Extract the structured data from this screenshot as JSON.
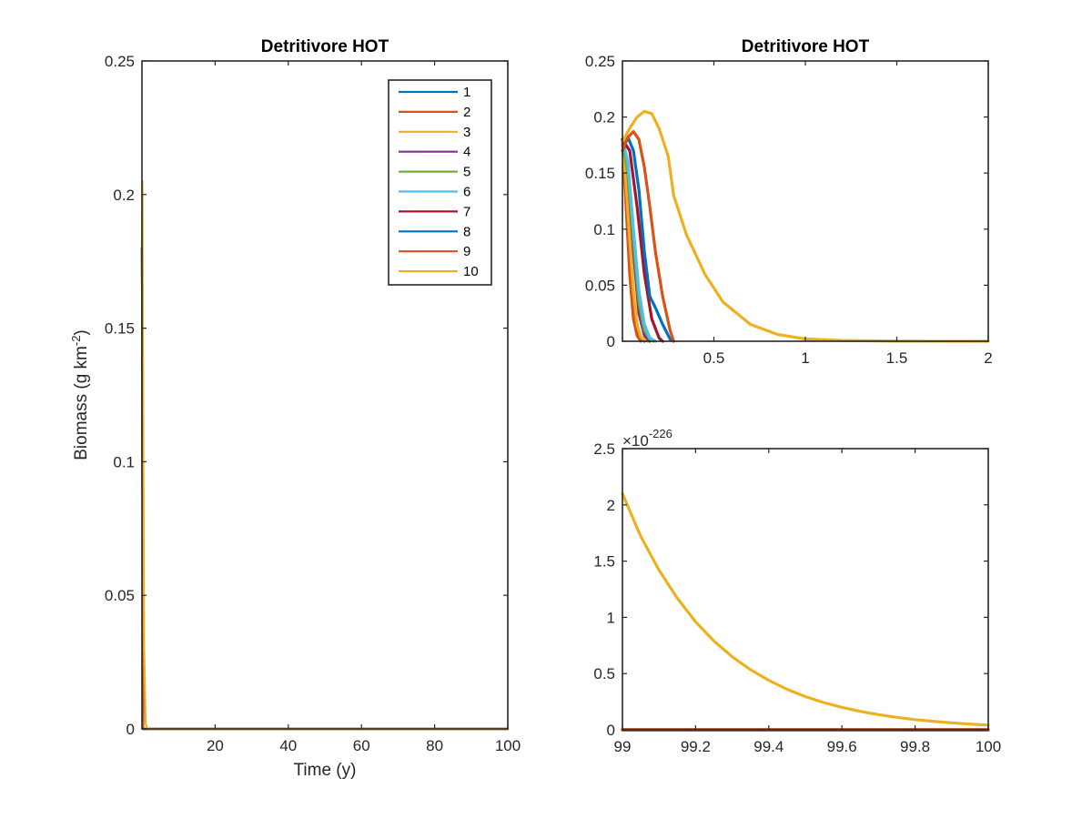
{
  "colors": {
    "series": [
      "#0072BD",
      "#D95319",
      "#EDB120",
      "#7E2F8E",
      "#77AC30",
      "#4DBEEE",
      "#A2142F",
      "#0072BD",
      "#D95319",
      "#EDB120"
    ]
  },
  "chart_data": [
    {
      "type": "line",
      "title": "Detritivore HOT",
      "xlabel": "Time (y)",
      "ylabel": "Biomass (g km",
      "ylabel_sup": "-2",
      "ylabel_close": ")",
      "xlim": [
        0,
        100
      ],
      "ylim": [
        0,
        0.25
      ],
      "xticks": [
        20,
        40,
        60,
        80,
        100
      ],
      "yticks": [
        0,
        0.05,
        0.1,
        0.15,
        0.2,
        0.25
      ],
      "legend": {
        "placement": "top-right",
        "entries": [
          "1",
          "2",
          "3",
          "4",
          "5",
          "6",
          "7",
          "8",
          "9",
          "10"
        ]
      },
      "series": [
        {
          "name": "1",
          "x": [
            0,
            0.12,
            0.3,
            100
          ],
          "y": [
            0.18,
            0.1,
            0,
            0
          ]
        },
        {
          "name": "2",
          "x": [
            0,
            0.12,
            0.3,
            100
          ],
          "y": [
            0.18,
            0.1,
            0,
            0
          ]
        },
        {
          "name": "3",
          "x": [
            0,
            0.12,
            0.3,
            100
          ],
          "y": [
            0.18,
            0.1,
            0,
            0
          ]
        },
        {
          "name": "4",
          "x": [
            0,
            0.12,
            0.3,
            100
          ],
          "y": [
            0.18,
            0.1,
            0,
            0
          ]
        },
        {
          "name": "5",
          "x": [
            0,
            0.12,
            0.3,
            100
          ],
          "y": [
            0.18,
            0.1,
            0,
            0
          ]
        },
        {
          "name": "6",
          "x": [
            0,
            0.12,
            0.3,
            100
          ],
          "y": [
            0.18,
            0.1,
            0,
            0
          ]
        },
        {
          "name": "7",
          "x": [
            0,
            0.12,
            0.3,
            100
          ],
          "y": [
            0.18,
            0.1,
            0,
            0
          ]
        },
        {
          "name": "8",
          "x": [
            0,
            0.12,
            0.3,
            100
          ],
          "y": [
            0.18,
            0.1,
            0,
            0
          ]
        },
        {
          "name": "9",
          "x": [
            0,
            0.05,
            0.12,
            0.3,
            100
          ],
          "y": [
            0.18,
            0.187,
            0.15,
            0,
            0
          ]
        },
        {
          "name": "10",
          "x": [
            0,
            0.12,
            0.3,
            0.6,
            1.0,
            1.5,
            100
          ],
          "y": [
            0.18,
            0.205,
            0.13,
            0.03,
            0.002,
            0,
            0
          ]
        }
      ]
    },
    {
      "type": "line",
      "title": "Detritivore HOT",
      "xlim": [
        0,
        2
      ],
      "ylim": [
        0,
        0.25
      ],
      "xticks": [
        0.5,
        1,
        1.5,
        2
      ],
      "yticks": [
        0,
        0.05,
        0.1,
        0.15,
        0.2,
        0.25
      ],
      "series": [
        {
          "name": "1",
          "x": [
            0,
            0.02,
            0.04,
            0.06,
            0.08,
            0.1,
            0.12
          ],
          "y": [
            0.18,
            0.13,
            0.07,
            0.03,
            0.01,
            0.002,
            0
          ]
        },
        {
          "name": "2",
          "x": [
            0,
            0.02,
            0.04,
            0.06,
            0.08,
            0.1
          ],
          "y": [
            0.18,
            0.12,
            0.06,
            0.02,
            0.005,
            0
          ]
        },
        {
          "name": "3",
          "x": [
            0,
            0.02,
            0.04,
            0.06,
            0.08,
            0.1,
            0.12,
            0.14
          ],
          "y": [
            0.18,
            0.14,
            0.09,
            0.045,
            0.015,
            0.004,
            0.001,
            0
          ]
        },
        {
          "name": "4",
          "x": [
            0,
            0.03,
            0.06,
            0.09,
            0.12,
            0.15
          ],
          "y": [
            0.18,
            0.15,
            0.08,
            0.025,
            0.005,
            0
          ]
        },
        {
          "name": "5",
          "x": [
            0,
            0.03,
            0.06,
            0.09,
            0.12,
            0.15,
            0.17
          ],
          "y": [
            0.18,
            0.15,
            0.09,
            0.035,
            0.01,
            0.002,
            0
          ]
        },
        {
          "name": "6",
          "x": [
            0,
            0.03,
            0.06,
            0.09,
            0.12,
            0.15,
            0.18
          ],
          "y": [
            0.18,
            0.16,
            0.1,
            0.045,
            0.015,
            0.003,
            0
          ]
        },
        {
          "name": "7",
          "x": [
            0,
            0.04,
            0.08,
            0.12,
            0.16,
            0.2,
            0.22
          ],
          "y": [
            0.18,
            0.17,
            0.12,
            0.06,
            0.02,
            0.003,
            0
          ]
        },
        {
          "name": "8",
          "x": [
            0,
            0.03,
            0.06,
            0.09,
            0.12,
            0.15,
            0.18,
            0.22,
            0.26,
            0.28
          ],
          "y": [
            0.17,
            0.182,
            0.17,
            0.135,
            0.08,
            0.04,
            0.03,
            0.015,
            0.002,
            0
          ]
        },
        {
          "name": "9",
          "x": [
            0,
            0.03,
            0.06,
            0.09,
            0.12,
            0.15,
            0.18,
            0.22,
            0.26,
            0.28
          ],
          "y": [
            0.17,
            0.182,
            0.187,
            0.18,
            0.155,
            0.12,
            0.08,
            0.04,
            0.01,
            0
          ]
        },
        {
          "name": "10",
          "x": [
            0,
            0.04,
            0.08,
            0.12,
            0.16,
            0.2,
            0.25,
            0.28,
            0.35,
            0.45,
            0.55,
            0.7,
            0.85,
            1.0,
            1.2,
            1.5,
            2.0
          ],
          "y": [
            0.178,
            0.19,
            0.2,
            0.205,
            0.203,
            0.19,
            0.165,
            0.13,
            0.095,
            0.06,
            0.035,
            0.015,
            0.006,
            0.002,
            0.0007,
            0.0001,
            0
          ]
        }
      ]
    },
    {
      "type": "line",
      "exponent_label": "×10",
      "exponent_sup": "-226",
      "xlim": [
        99,
        100
      ],
      "ylim": [
        0,
        2.5
      ],
      "xticks": [
        99,
        99.2,
        99.4,
        99.6,
        99.8,
        100
      ],
      "yticks": [
        0,
        0.5,
        1,
        1.5,
        2,
        2.5
      ],
      "series": [
        {
          "name": "1",
          "x": [
            99,
            100
          ],
          "y": [
            0,
            0
          ]
        },
        {
          "name": "2",
          "x": [
            99,
            100
          ],
          "y": [
            0,
            0
          ]
        },
        {
          "name": "3",
          "x": [
            99,
            100
          ],
          "y": [
            0,
            0
          ]
        },
        {
          "name": "4",
          "x": [
            99,
            100
          ],
          "y": [
            0,
            0
          ]
        },
        {
          "name": "5",
          "x": [
            99,
            100
          ],
          "y": [
            0,
            0
          ]
        },
        {
          "name": "6",
          "x": [
            99,
            100
          ],
          "y": [
            0,
            0
          ]
        },
        {
          "name": "7",
          "x": [
            99,
            100
          ],
          "y": [
            0,
            0
          ]
        },
        {
          "name": "8",
          "x": [
            99,
            100
          ],
          "y": [
            0,
            0
          ]
        },
        {
          "name": "9",
          "x": [
            99,
            100
          ],
          "y": [
            0,
            0
          ]
        },
        {
          "name": "10",
          "x": [
            99,
            99.05,
            99.1,
            99.15,
            99.2,
            99.25,
            99.3,
            99.35,
            99.4,
            99.45,
            99.5,
            99.55,
            99.6,
            99.65,
            99.7,
            99.75,
            99.8,
            99.85,
            99.9,
            99.95,
            100
          ],
          "y": [
            2.1,
            1.72,
            1.42,
            1.17,
            0.96,
            0.79,
            0.65,
            0.535,
            0.44,
            0.36,
            0.295,
            0.243,
            0.2,
            0.164,
            0.135,
            0.111,
            0.091,
            0.075,
            0.062,
            0.051,
            0.042
          ]
        }
      ]
    }
  ]
}
